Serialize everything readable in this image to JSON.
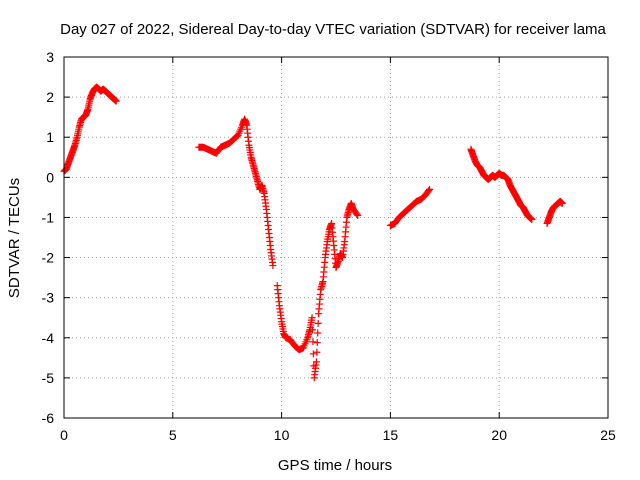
{
  "chart_data": {
    "type": "scatter",
    "title": "Day 027 of 2022, Sidereal Day-to-day VTEC variation (SDTVAR) for receiver lama",
    "xlabel": "GPS time / hours",
    "ylabel": "SDTVAR / TECUs",
    "xlim": [
      0,
      25
    ],
    "ylim": [
      -6,
      3
    ],
    "x_ticks": [
      0,
      5,
      10,
      15,
      20,
      25
    ],
    "y_ticks": [
      -6,
      -5,
      -4,
      -3,
      -2,
      -1,
      0,
      1,
      2,
      3
    ],
    "grid": true,
    "marker": "plus",
    "color": "#ff0000",
    "segments": [
      {
        "x": [
          0.0,
          0.1,
          0.2,
          0.3,
          0.4,
          0.5,
          0.6,
          0.7,
          0.8,
          0.9,
          1.0,
          1.1,
          1.2,
          1.3,
          1.4,
          1.5,
          1.6,
          1.7,
          1.8,
          1.9,
          2.0,
          2.1,
          2.2,
          2.3,
          2.4
        ],
        "y": [
          0.15,
          0.2,
          0.35,
          0.5,
          0.65,
          0.8,
          1.0,
          1.25,
          1.45,
          1.5,
          1.55,
          1.7,
          1.95,
          2.1,
          2.2,
          2.25,
          2.2,
          2.15,
          2.2,
          2.15,
          2.1,
          2.05,
          2.0,
          1.95,
          1.9
        ]
      },
      {
        "x": [
          6.2,
          6.4,
          6.6,
          6.8,
          7.0,
          7.2,
          7.4,
          7.6,
          7.8,
          8.0,
          8.2,
          8.3,
          8.4,
          8.5,
          8.6,
          8.7,
          8.8,
          8.9,
          9.0,
          9.1,
          9.2,
          9.3,
          9.4,
          9.5,
          9.6
        ],
        "y": [
          0.75,
          0.75,
          0.7,
          0.65,
          0.6,
          0.75,
          0.8,
          0.85,
          0.95,
          1.05,
          1.3,
          1.45,
          1.3,
          0.8,
          0.5,
          0.3,
          0.1,
          -0.1,
          -0.3,
          -0.2,
          -0.4,
          -0.8,
          -1.3,
          -1.8,
          -2.2
        ]
      },
      {
        "x": [
          9.8,
          9.9,
          10.0,
          10.1,
          10.2,
          10.4,
          10.6,
          10.8,
          11.0,
          11.2,
          11.3,
          11.4,
          11.5,
          11.6,
          11.7,
          11.8,
          11.9,
          12.0,
          12.1,
          12.2,
          12.3,
          12.4,
          12.5,
          12.6,
          12.7,
          12.8,
          12.9,
          13.0,
          13.1,
          13.2,
          13.3,
          13.5
        ],
        "y": [
          -2.7,
          -3.2,
          -3.6,
          -3.9,
          -4.0,
          -4.05,
          -4.2,
          -4.3,
          -4.25,
          -4.0,
          -3.8,
          -3.5,
          -5.0,
          -4.6,
          -3.4,
          -2.8,
          -2.6,
          -2.0,
          -1.6,
          -1.3,
          -1.15,
          -1.7,
          -2.25,
          -2.1,
          -1.9,
          -2.0,
          -1.6,
          -1.0,
          -0.8,
          -0.65,
          -0.8,
          -0.95
        ]
      },
      {
        "x": [
          15.0,
          15.2,
          15.4,
          15.6,
          15.8,
          16.0,
          16.2,
          16.4,
          16.6,
          16.8
        ],
        "y": [
          -1.2,
          -1.15,
          -1.0,
          -0.9,
          -0.8,
          -0.7,
          -0.6,
          -0.55,
          -0.45,
          -0.3
        ]
      },
      {
        "x": [
          18.7,
          18.8,
          18.9,
          19.0,
          19.1,
          19.2,
          19.3,
          19.4,
          19.5,
          19.6,
          19.7,
          19.8,
          19.9,
          20.0,
          20.1,
          20.2,
          20.3,
          20.4,
          20.5,
          20.6,
          20.7,
          20.8,
          20.9,
          21.0,
          21.1,
          21.2,
          21.3,
          21.4,
          21.5
        ],
        "y": [
          0.7,
          0.55,
          0.4,
          0.3,
          0.25,
          0.15,
          0.05,
          0.0,
          -0.05,
          0.0,
          0.05,
          0.0,
          0.05,
          0.1,
          0.05,
          0.05,
          0.0,
          -0.05,
          -0.2,
          -0.3,
          -0.4,
          -0.5,
          -0.6,
          -0.7,
          -0.75,
          -0.85,
          -0.95,
          -1.0,
          -1.05
        ]
      },
      {
        "x": [
          22.2,
          22.3,
          22.4,
          22.5,
          22.6,
          22.7,
          22.8,
          22.9
        ],
        "y": [
          -1.15,
          -1.0,
          -0.85,
          -0.75,
          -0.7,
          -0.65,
          -0.6,
          -0.65
        ]
      }
    ]
  }
}
